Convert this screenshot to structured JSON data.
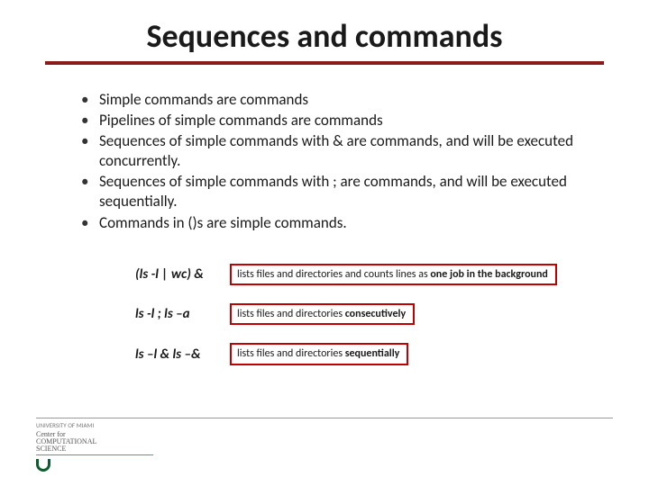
{
  "colors": {
    "title_underline": "#8b1a1a",
    "box_border": "#c00000",
    "footer_rule": "#d8701a",
    "logo_green": "#0d5c2f",
    "logo_orange": "#e67817"
  },
  "title": "Sequences and commands",
  "bullets": [
    "Simple commands are commands",
    "Pipelines of simple commands are commands",
    "Sequences of simple commands with & are commands, and will be executed concurrently.",
    "Sequences of simple commands with ; are commands, and will be executed sequentially.",
    "Commands in ()s are simple commands."
  ],
  "examples": [
    {
      "cmd": "(ls -l | wc) &",
      "desc_pre": "lists files and directories and counts lines as ",
      "desc_strong": "one job in the background",
      "desc_post": ""
    },
    {
      "cmd": "ls -l ; ls –a",
      "desc_pre": "lists files and directories ",
      "desc_strong": "consecutively",
      "desc_post": ""
    },
    {
      "cmd": "ls –l & ls –&",
      "desc_pre": "lists files and directories ",
      "desc_strong": "sequentially",
      "desc_post": ""
    }
  ],
  "footer": {
    "line1": "UNIVERSITY OF MIAMI",
    "line2a": "Center for",
    "line2b": "COMPUTATIONAL",
    "line2c": "SCIENCE"
  }
}
